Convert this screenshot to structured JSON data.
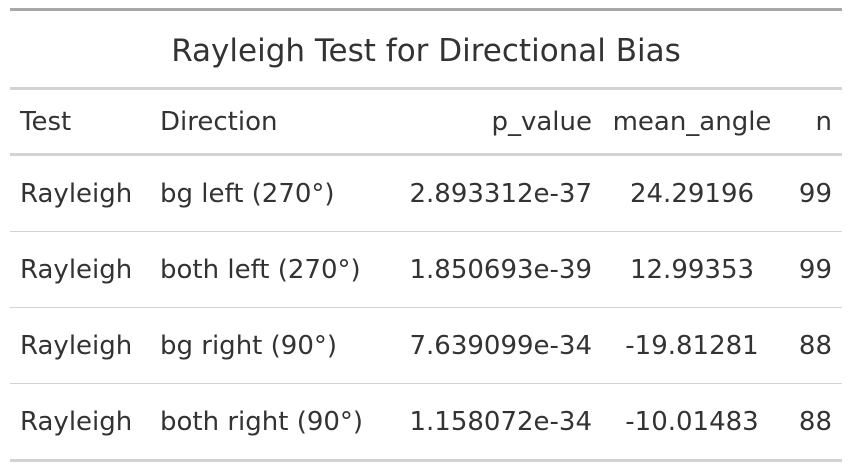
{
  "table": {
    "title": "Rayleigh Test for Directional Bias",
    "columns": [
      "Test",
      "Direction",
      "p_value",
      "mean_angle",
      "n"
    ],
    "rows": [
      [
        "Rayleigh",
        "bg left (270°)",
        "2.893312e-37",
        "24.29196",
        "99"
      ],
      [
        "Rayleigh",
        "both left (270°)",
        "1.850693e-39",
        "12.99353",
        "99"
      ],
      [
        "Rayleigh",
        "bg right (90°)",
        "7.639099e-34",
        "-19.81281",
        "88"
      ],
      [
        "Rayleigh",
        "both right (90°)",
        "1.158072e-34",
        "-10.01483",
        "88"
      ]
    ]
  }
}
